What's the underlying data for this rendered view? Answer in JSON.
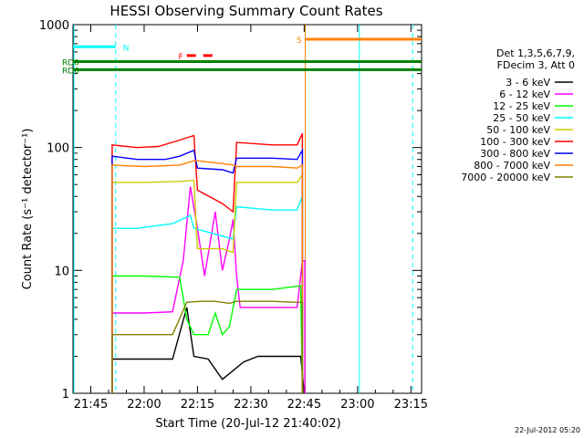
{
  "chart_data": {
    "type": "line",
    "title": "HESSI Observing Summary Count Rates",
    "xlabel": "Start Time (20-Jul-12 21:40:02)",
    "ylabel": "Count Rate (s⁻¹ detector⁻¹)",
    "yscale": "log",
    "ylim": [
      1,
      1000
    ],
    "xlim_minutes": [
      0,
      98
    ],
    "x_ticks": [
      {
        "label": "21:45",
        "t": 5
      },
      {
        "label": "22:00",
        "t": 20
      },
      {
        "label": "22:15",
        "t": 35
      },
      {
        "label": "22:30",
        "t": 50
      },
      {
        "label": "22:45",
        "t": 65
      },
      {
        "label": "23:00",
        "t": 80
      },
      {
        "label": "23:15",
        "t": 95
      }
    ],
    "y_ticks": [
      {
        "label": "1",
        "v": 1
      },
      {
        "label": "10",
        "v": 10
      },
      {
        "label": "100",
        "v": 100
      },
      {
        "label": "1000",
        "v": 1000
      }
    ],
    "legend_header": [
      "Det 1,3,5,6,7,9,",
      "FDecim 3, Att 0"
    ],
    "legend_position": "right",
    "series": [
      {
        "name": "3 - 6 keV",
        "color": "#000000",
        "points": [
          [
            11,
            1
          ],
          [
            11,
            1.9
          ],
          [
            18,
            1.9
          ],
          [
            28,
            1.9
          ],
          [
            32,
            5
          ],
          [
            34,
            2
          ],
          [
            38,
            1.9
          ],
          [
            42,
            1.3
          ],
          [
            48,
            1.8
          ],
          [
            52,
            2
          ],
          [
            60,
            2
          ],
          [
            64,
            2
          ],
          [
            65,
            1
          ]
        ]
      },
      {
        "name": "6 - 12 keV",
        "color": "#ff00ff",
        "points": [
          [
            11,
            1
          ],
          [
            11,
            4.5
          ],
          [
            20,
            4.5
          ],
          [
            28,
            4.6
          ],
          [
            31,
            12
          ],
          [
            33,
            48
          ],
          [
            35,
            22
          ],
          [
            37,
            9
          ],
          [
            40,
            30
          ],
          [
            42,
            10
          ],
          [
            44,
            18
          ],
          [
            45,
            26
          ],
          [
            46,
            9
          ],
          [
            47,
            5
          ],
          [
            56,
            5
          ],
          [
            63,
            5
          ],
          [
            64.5,
            12
          ],
          [
            65.2,
            12
          ],
          [
            65.2,
            1
          ]
        ]
      },
      {
        "name": "12 - 25 keV",
        "color": "#00ff00",
        "points": [
          [
            11,
            1
          ],
          [
            11,
            9
          ],
          [
            20,
            9
          ],
          [
            30,
            8.8
          ],
          [
            32,
            4
          ],
          [
            34,
            3
          ],
          [
            38,
            3
          ],
          [
            40,
            4.5
          ],
          [
            42,
            3
          ],
          [
            44,
            3.5
          ],
          [
            46,
            7
          ],
          [
            56,
            7
          ],
          [
            64,
            7.5
          ],
          [
            64.5,
            1
          ]
        ]
      },
      {
        "name": "25 - 50 keV",
        "color": "#00ffff",
        "points": [
          [
            11,
            1
          ],
          [
            11,
            22
          ],
          [
            18,
            22
          ],
          [
            28,
            24
          ],
          [
            33,
            28
          ],
          [
            34,
            22
          ],
          [
            42,
            19
          ],
          [
            45,
            18
          ],
          [
            46,
            33
          ],
          [
            56,
            31
          ],
          [
            63,
            31
          ],
          [
            64.5,
            40
          ],
          [
            64.5,
            1
          ]
        ]
      },
      {
        "name": "50 - 100 keV",
        "color": "#cccc00",
        "points": [
          [
            11,
            1
          ],
          [
            11,
            52
          ],
          [
            20,
            52
          ],
          [
            30,
            53
          ],
          [
            34,
            54
          ],
          [
            35,
            15
          ],
          [
            42,
            15
          ],
          [
            45,
            14
          ],
          [
            46,
            52
          ],
          [
            56,
            52
          ],
          [
            63,
            52
          ],
          [
            64.5,
            60
          ],
          [
            64.5,
            1
          ]
        ]
      },
      {
        "name": "100 - 300 keV",
        "color": "#ff0000",
        "points": [
          [
            11,
            1
          ],
          [
            11,
            105
          ],
          [
            18,
            100
          ],
          [
            24,
            102
          ],
          [
            30,
            115
          ],
          [
            34,
            125
          ],
          [
            35,
            45
          ],
          [
            42,
            35
          ],
          [
            45,
            30
          ],
          [
            46,
            110
          ],
          [
            56,
            105
          ],
          [
            63,
            105
          ],
          [
            64.5,
            130
          ],
          [
            64.5,
            1
          ]
        ]
      },
      {
        "name": "300 - 800 keV",
        "color": "#0000ff",
        "points": [
          [
            11,
            1
          ],
          [
            11,
            85
          ],
          [
            18,
            80
          ],
          [
            26,
            80
          ],
          [
            30,
            85
          ],
          [
            34,
            95
          ],
          [
            35,
            68
          ],
          [
            42,
            66
          ],
          [
            45,
            62
          ],
          [
            46,
            82
          ],
          [
            56,
            82
          ],
          [
            63,
            80
          ],
          [
            64.5,
            95
          ],
          [
            64.5,
            1
          ]
        ]
      },
      {
        "name": "800 - 7000 keV",
        "color": "#ff8000",
        "points": [
          [
            11,
            1
          ],
          [
            11,
            72
          ],
          [
            20,
            70
          ],
          [
            30,
            72
          ],
          [
            34,
            78
          ],
          [
            35,
            78
          ],
          [
            42,
            74
          ],
          [
            45,
            72
          ],
          [
            46,
            70
          ],
          [
            56,
            70
          ],
          [
            63,
            68
          ],
          [
            64.5,
            72
          ],
          [
            64.5,
            1
          ]
        ]
      },
      {
        "name": "7000 - 20000 keV",
        "color": "#808000",
        "points": [
          [
            11,
            1
          ],
          [
            11,
            3
          ],
          [
            20,
            3
          ],
          [
            28,
            3
          ],
          [
            32,
            5.5
          ],
          [
            36,
            5.6
          ],
          [
            40,
            5.6
          ],
          [
            44,
            5.4
          ],
          [
            46,
            5.6
          ],
          [
            56,
            5.6
          ],
          [
            63,
            5.5
          ],
          [
            64.5,
            5.5
          ],
          [
            64.5,
            1
          ]
        ]
      }
    ],
    "annotations": [
      {
        "label": "N",
        "color": "#00ffff",
        "t_start": 0,
        "t_end": 12,
        "y": 660
      },
      {
        "label": "S",
        "color": "#ff8000",
        "t_start": 65.3,
        "t_end": 98,
        "y": 760
      },
      {
        "label": "F",
        "color": "#ff0000",
        "t_start": 32,
        "t_end": 40,
        "y": 560,
        "dashed": true
      },
      {
        "label": "RD0",
        "color": "#008000",
        "t_start": 0,
        "t_end": 98,
        "y": 500
      },
      {
        "label": "RD6",
        "color": "#008000",
        "t_start": 0,
        "t_end": 98,
        "y": 430
      }
    ],
    "vertical_lines": [
      {
        "t": 12,
        "color": "#00ffff",
        "dashed": true
      },
      {
        "t": 65.3,
        "color": "#ff8000",
        "dashed": false
      },
      {
        "t": 80.5,
        "color": "#00ffff",
        "dashed": false
      },
      {
        "t": 95.5,
        "color": "#00ffff",
        "dashed": true
      }
    ]
  },
  "footer": {
    "date_stamp": "22-Jul-2012 05:20"
  }
}
